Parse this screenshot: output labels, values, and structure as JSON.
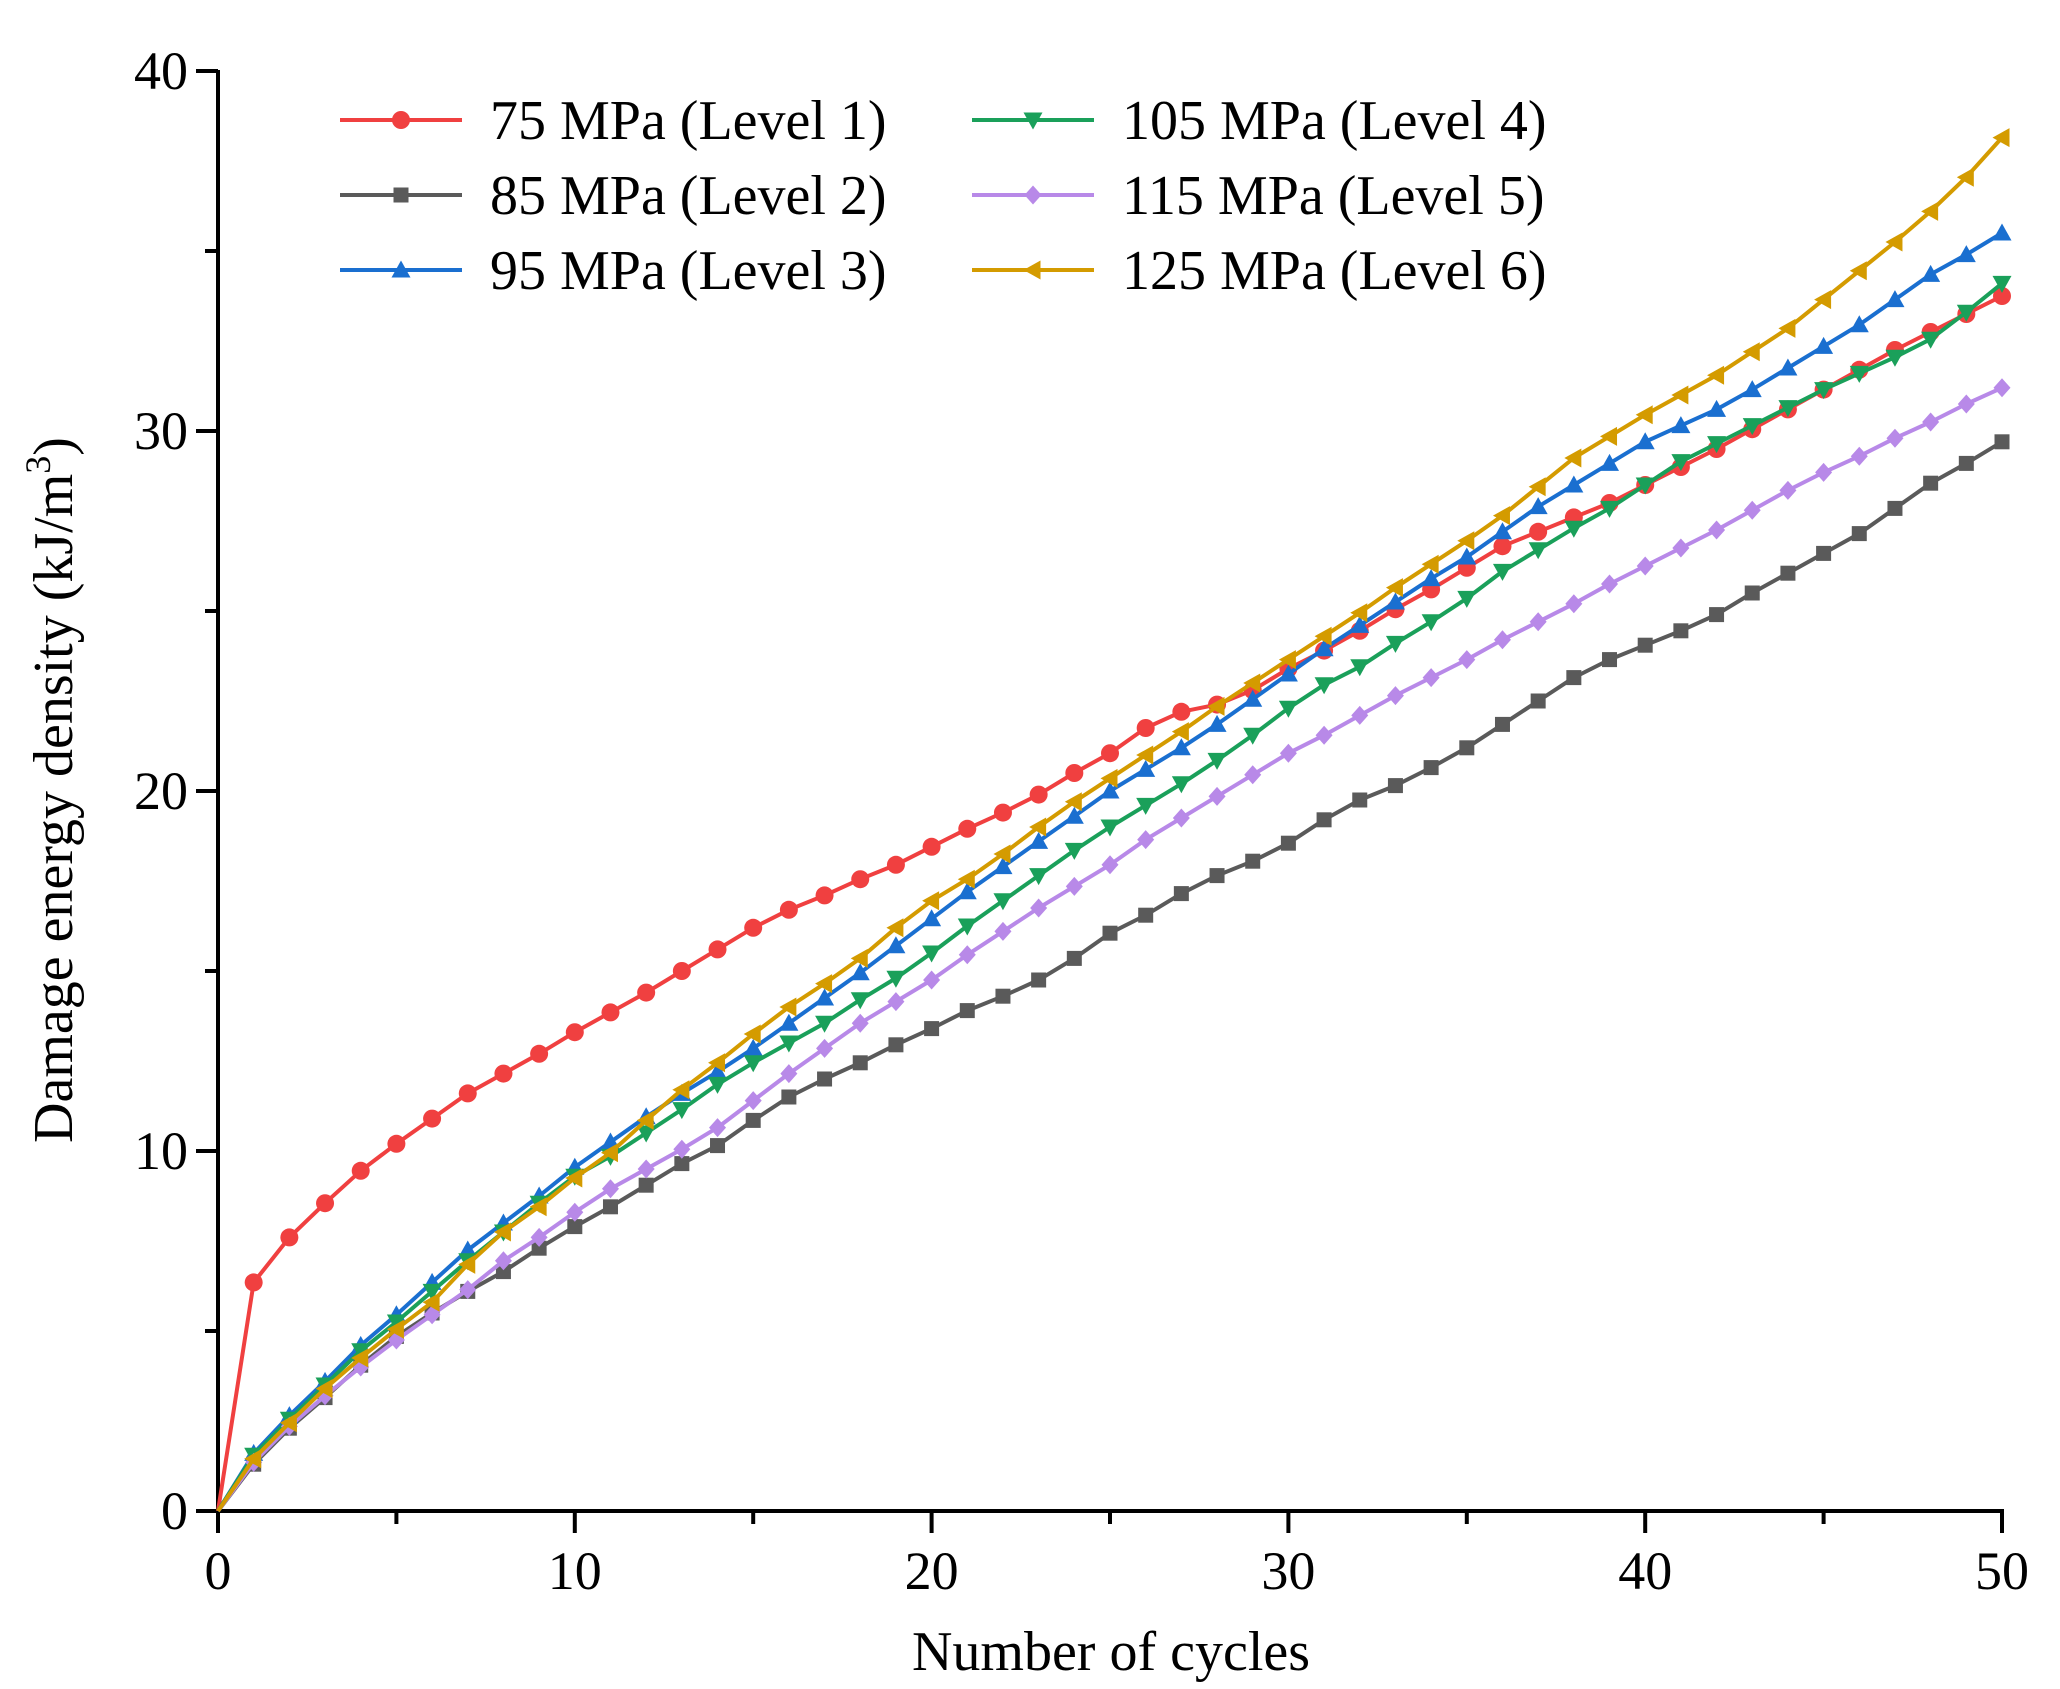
{
  "chart_data": {
    "type": "line",
    "title": "",
    "xlabel": "Number of cycles",
    "ylabel_main": "Damage energy density (kJ/m",
    "ylabel_sup": "3",
    "ylabel_close": ")",
    "xlim": [
      0,
      50
    ],
    "ylim": [
      0,
      40
    ],
    "xticks": [
      0,
      10,
      20,
      30,
      40,
      50
    ],
    "yticks": [
      0,
      10,
      20,
      30,
      40
    ],
    "x_minor_step": 5,
    "y_minor_step": 5,
    "grid": false,
    "legend_placement": "top-left",
    "x": [
      0,
      1,
      2,
      3,
      4,
      5,
      6,
      7,
      8,
      9,
      10,
      11,
      12,
      13,
      14,
      15,
      16,
      17,
      18,
      19,
      20,
      21,
      22,
      23,
      24,
      25,
      26,
      27,
      28,
      29,
      30,
      31,
      32,
      33,
      34,
      35,
      36,
      37,
      38,
      39,
      40,
      41,
      42,
      43,
      44,
      45,
      46,
      47,
      48,
      49,
      50
    ],
    "series": [
      {
        "name": "75 MPa (Level 1)",
        "color": "#f04040",
        "marker": "circle",
        "values": [
          0,
          6.35,
          7.6,
          8.55,
          9.45,
          10.2,
          10.9,
          11.6,
          12.15,
          12.7,
          13.3,
          13.85,
          14.4,
          15.0,
          15.6,
          16.2,
          16.7,
          17.1,
          17.55,
          17.95,
          18.45,
          18.95,
          19.4,
          19.9,
          20.5,
          21.05,
          21.75,
          22.2,
          22.4,
          22.8,
          23.4,
          23.9,
          24.45,
          25.05,
          25.6,
          26.2,
          26.8,
          27.2,
          27.6,
          28.0,
          28.5,
          29.0,
          29.5,
          30.05,
          30.6,
          31.15,
          31.7,
          32.25,
          32.75,
          33.25,
          33.75
        ]
      },
      {
        "name": "85 MPa (Level 2)",
        "color": "#5a5a5a",
        "marker": "square",
        "values": [
          0,
          1.3,
          2.3,
          3.15,
          4.05,
          4.85,
          5.5,
          6.1,
          6.65,
          7.3,
          7.9,
          8.45,
          9.05,
          9.65,
          10.15,
          10.85,
          11.5,
          12.0,
          12.45,
          12.95,
          13.4,
          13.9,
          14.3,
          14.75,
          15.35,
          16.05,
          16.55,
          17.15,
          17.65,
          18.05,
          18.55,
          19.2,
          19.75,
          20.15,
          20.65,
          21.2,
          21.85,
          22.5,
          23.15,
          23.65,
          24.05,
          24.45,
          24.9,
          25.5,
          26.05,
          26.6,
          27.15,
          27.85,
          28.55,
          29.1,
          29.7
        ]
      },
      {
        "name": "95 MPa (Level 3)",
        "color": "#1a6fd0",
        "marker": "triangle-up",
        "values": [
          0,
          1.6,
          2.65,
          3.6,
          4.6,
          5.45,
          6.35,
          7.25,
          8.0,
          8.75,
          9.55,
          10.25,
          10.95,
          11.6,
          12.2,
          12.85,
          13.55,
          14.25,
          14.95,
          15.7,
          16.45,
          17.2,
          17.9,
          18.6,
          19.3,
          20.0,
          20.6,
          21.2,
          21.85,
          22.55,
          23.25,
          23.95,
          24.6,
          25.25,
          25.9,
          26.5,
          27.2,
          27.9,
          28.5,
          29.1,
          29.7,
          30.15,
          30.6,
          31.15,
          31.75,
          32.35,
          32.95,
          33.65,
          34.35,
          34.9,
          35.5
        ]
      },
      {
        "name": "105 MPa (Level 4)",
        "color": "#1aa05a",
        "marker": "triangle-down",
        "values": [
          0,
          1.55,
          2.55,
          3.5,
          4.45,
          5.25,
          6.1,
          6.95,
          7.75,
          8.55,
          9.3,
          9.85,
          10.5,
          11.15,
          11.85,
          12.45,
          13.0,
          13.55,
          14.2,
          14.8,
          15.5,
          16.25,
          16.95,
          17.65,
          18.35,
          19.0,
          19.6,
          20.2,
          20.85,
          21.55,
          22.3,
          22.95,
          23.45,
          24.1,
          24.7,
          25.35,
          26.1,
          26.7,
          27.3,
          27.85,
          28.5,
          29.15,
          29.65,
          30.15,
          30.65,
          31.15,
          31.6,
          32.05,
          32.55,
          33.3,
          34.1
        ]
      },
      {
        "name": "115 MPa (Level 5)",
        "color": "#b889e8",
        "marker": "diamond",
        "values": [
          0,
          1.35,
          2.35,
          3.2,
          4.0,
          4.75,
          5.45,
          6.15,
          6.95,
          7.6,
          8.3,
          8.95,
          9.5,
          10.05,
          10.65,
          11.4,
          12.15,
          12.85,
          13.55,
          14.15,
          14.75,
          15.45,
          16.1,
          16.75,
          17.35,
          17.95,
          18.65,
          19.25,
          19.85,
          20.45,
          21.05,
          21.55,
          22.1,
          22.65,
          23.15,
          23.65,
          24.2,
          24.7,
          25.2,
          25.75,
          26.25,
          26.75,
          27.25,
          27.8,
          28.35,
          28.85,
          29.3,
          29.8,
          30.25,
          30.75,
          31.2
        ]
      },
      {
        "name": "125 MPa (Level 6)",
        "color": "#d49b00",
        "marker": "triangle-left",
        "values": [
          0,
          1.45,
          2.45,
          3.4,
          4.25,
          5.05,
          5.8,
          6.85,
          7.75,
          8.45,
          9.25,
          9.95,
          10.85,
          11.7,
          12.45,
          13.25,
          14.0,
          14.65,
          15.35,
          16.2,
          16.95,
          17.55,
          18.25,
          19.0,
          19.7,
          20.35,
          21.0,
          21.65,
          22.35,
          23.0,
          23.65,
          24.3,
          24.95,
          25.65,
          26.3,
          26.95,
          27.65,
          28.45,
          29.25,
          29.85,
          30.45,
          31.0,
          31.55,
          32.2,
          32.85,
          33.65,
          34.45,
          35.25,
          36.1,
          37.05,
          38.15
        ]
      }
    ]
  }
}
